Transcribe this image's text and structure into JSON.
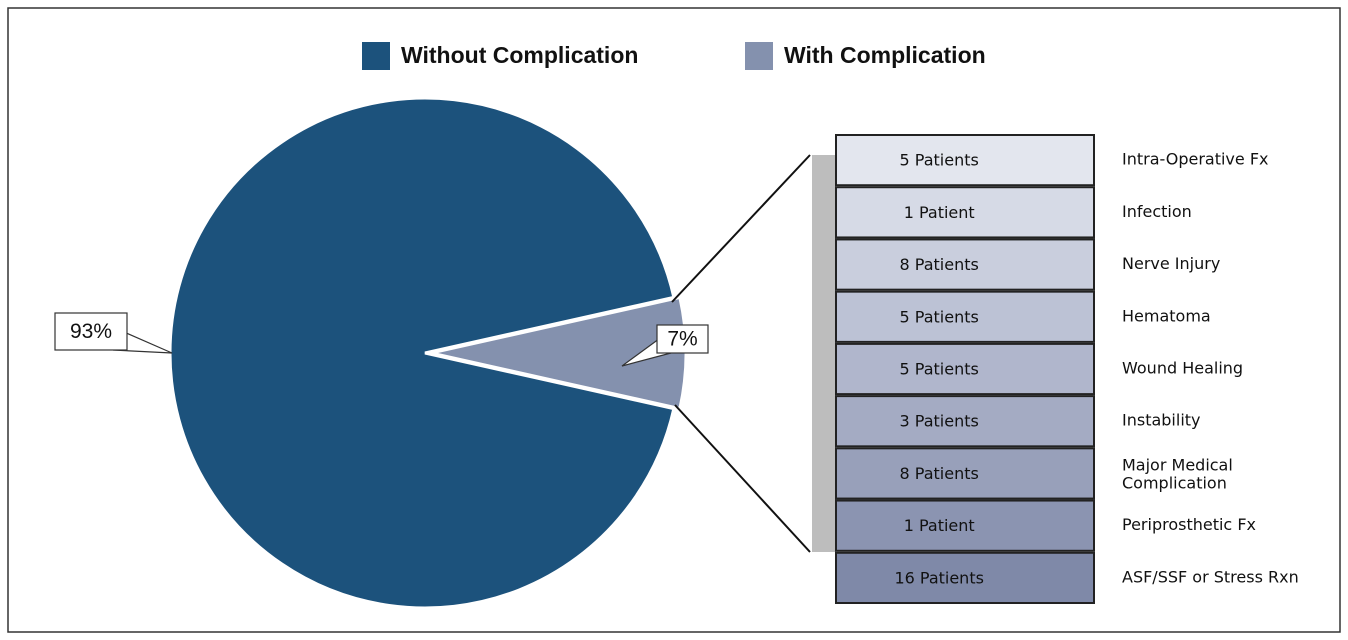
{
  "chart_data": [
    {
      "type": "pie",
      "categories": [
        "Without Complication",
        "With Complication"
      ],
      "values": [
        93,
        7
      ],
      "value_labels": [
        "93%",
        "7%"
      ],
      "colors": [
        "#1c527c",
        "#8491ae"
      ],
      "legend": "top"
    },
    {
      "type": "bar-of-pie",
      "categories": [
        "Intra-Operative Fx",
        "Infection",
        "Nerve Injury",
        "Hematoma",
        "Wound Healing",
        "Instability",
        "Major Medical Complication",
        "Periprosthetic Fx",
        "ASF/SSF or Stress Rxn"
      ],
      "values": [
        5,
        1,
        8,
        5,
        5,
        3,
        8,
        1,
        16
      ],
      "value_labels": [
        "5 Patients",
        "1 Patient",
        "8 Patients",
        "5 Patients",
        "5 Patients",
        "3 Patients",
        "8 Patients",
        "1 Patient",
        "16 Patients"
      ],
      "colors": [
        "#e3e6ee",
        "#d6dae6",
        "#c9cedd",
        "#bcc2d5",
        "#b0b6cc",
        "#a4abc3",
        "#98a0ba",
        "#8b94b1",
        "#7f89a8"
      ]
    }
  ]
}
